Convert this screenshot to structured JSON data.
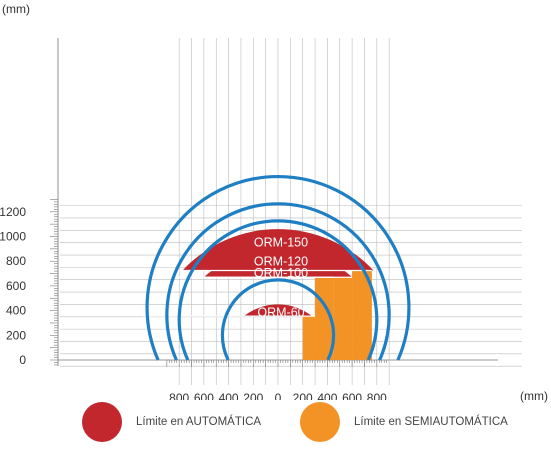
{
  "chart_data": {
    "type": "area",
    "title": "",
    "xlabel": "(mm)",
    "ylabel": "(mm)",
    "xlim": [
      -900,
      900
    ],
    "ylim": [
      -50,
      1300
    ],
    "x_tick_labels": [
      "800",
      "600",
      "400",
      "200",
      "0",
      "200",
      "400",
      "600",
      "800"
    ],
    "x_tick_values": [
      -800,
      -600,
      -400,
      -200,
      0,
      200,
      400,
      600,
      800
    ],
    "y_tick_values": [
      0,
      200,
      400,
      600,
      800,
      1000,
      1200
    ],
    "grid": true,
    "series": [
      {
        "name": "ORM-60",
        "arc_radius": 450,
        "auto_height": 355,
        "semi_x_range": [
          200,
          300
        ]
      },
      {
        "name": "ORM-100",
        "arc_radius": 800,
        "auto_height": 670,
        "semi_x_range": [
          300,
          450
        ]
      },
      {
        "name": "ORM-120",
        "arc_radius": 900,
        "auto_height": 670,
        "semi_x_range": [
          450,
          600
        ]
      },
      {
        "name": "ORM-150",
        "arc_radius": 1060,
        "auto_height": 725,
        "semi_x_range": [
          600,
          760
        ]
      }
    ],
    "legend": [
      {
        "label": "Límite en  AUTOMÁTICA",
        "color": "#c1272d"
      },
      {
        "label": "Límite en SEMIAUTOMÁTICA",
        "color": "#f39325"
      }
    ]
  }
}
